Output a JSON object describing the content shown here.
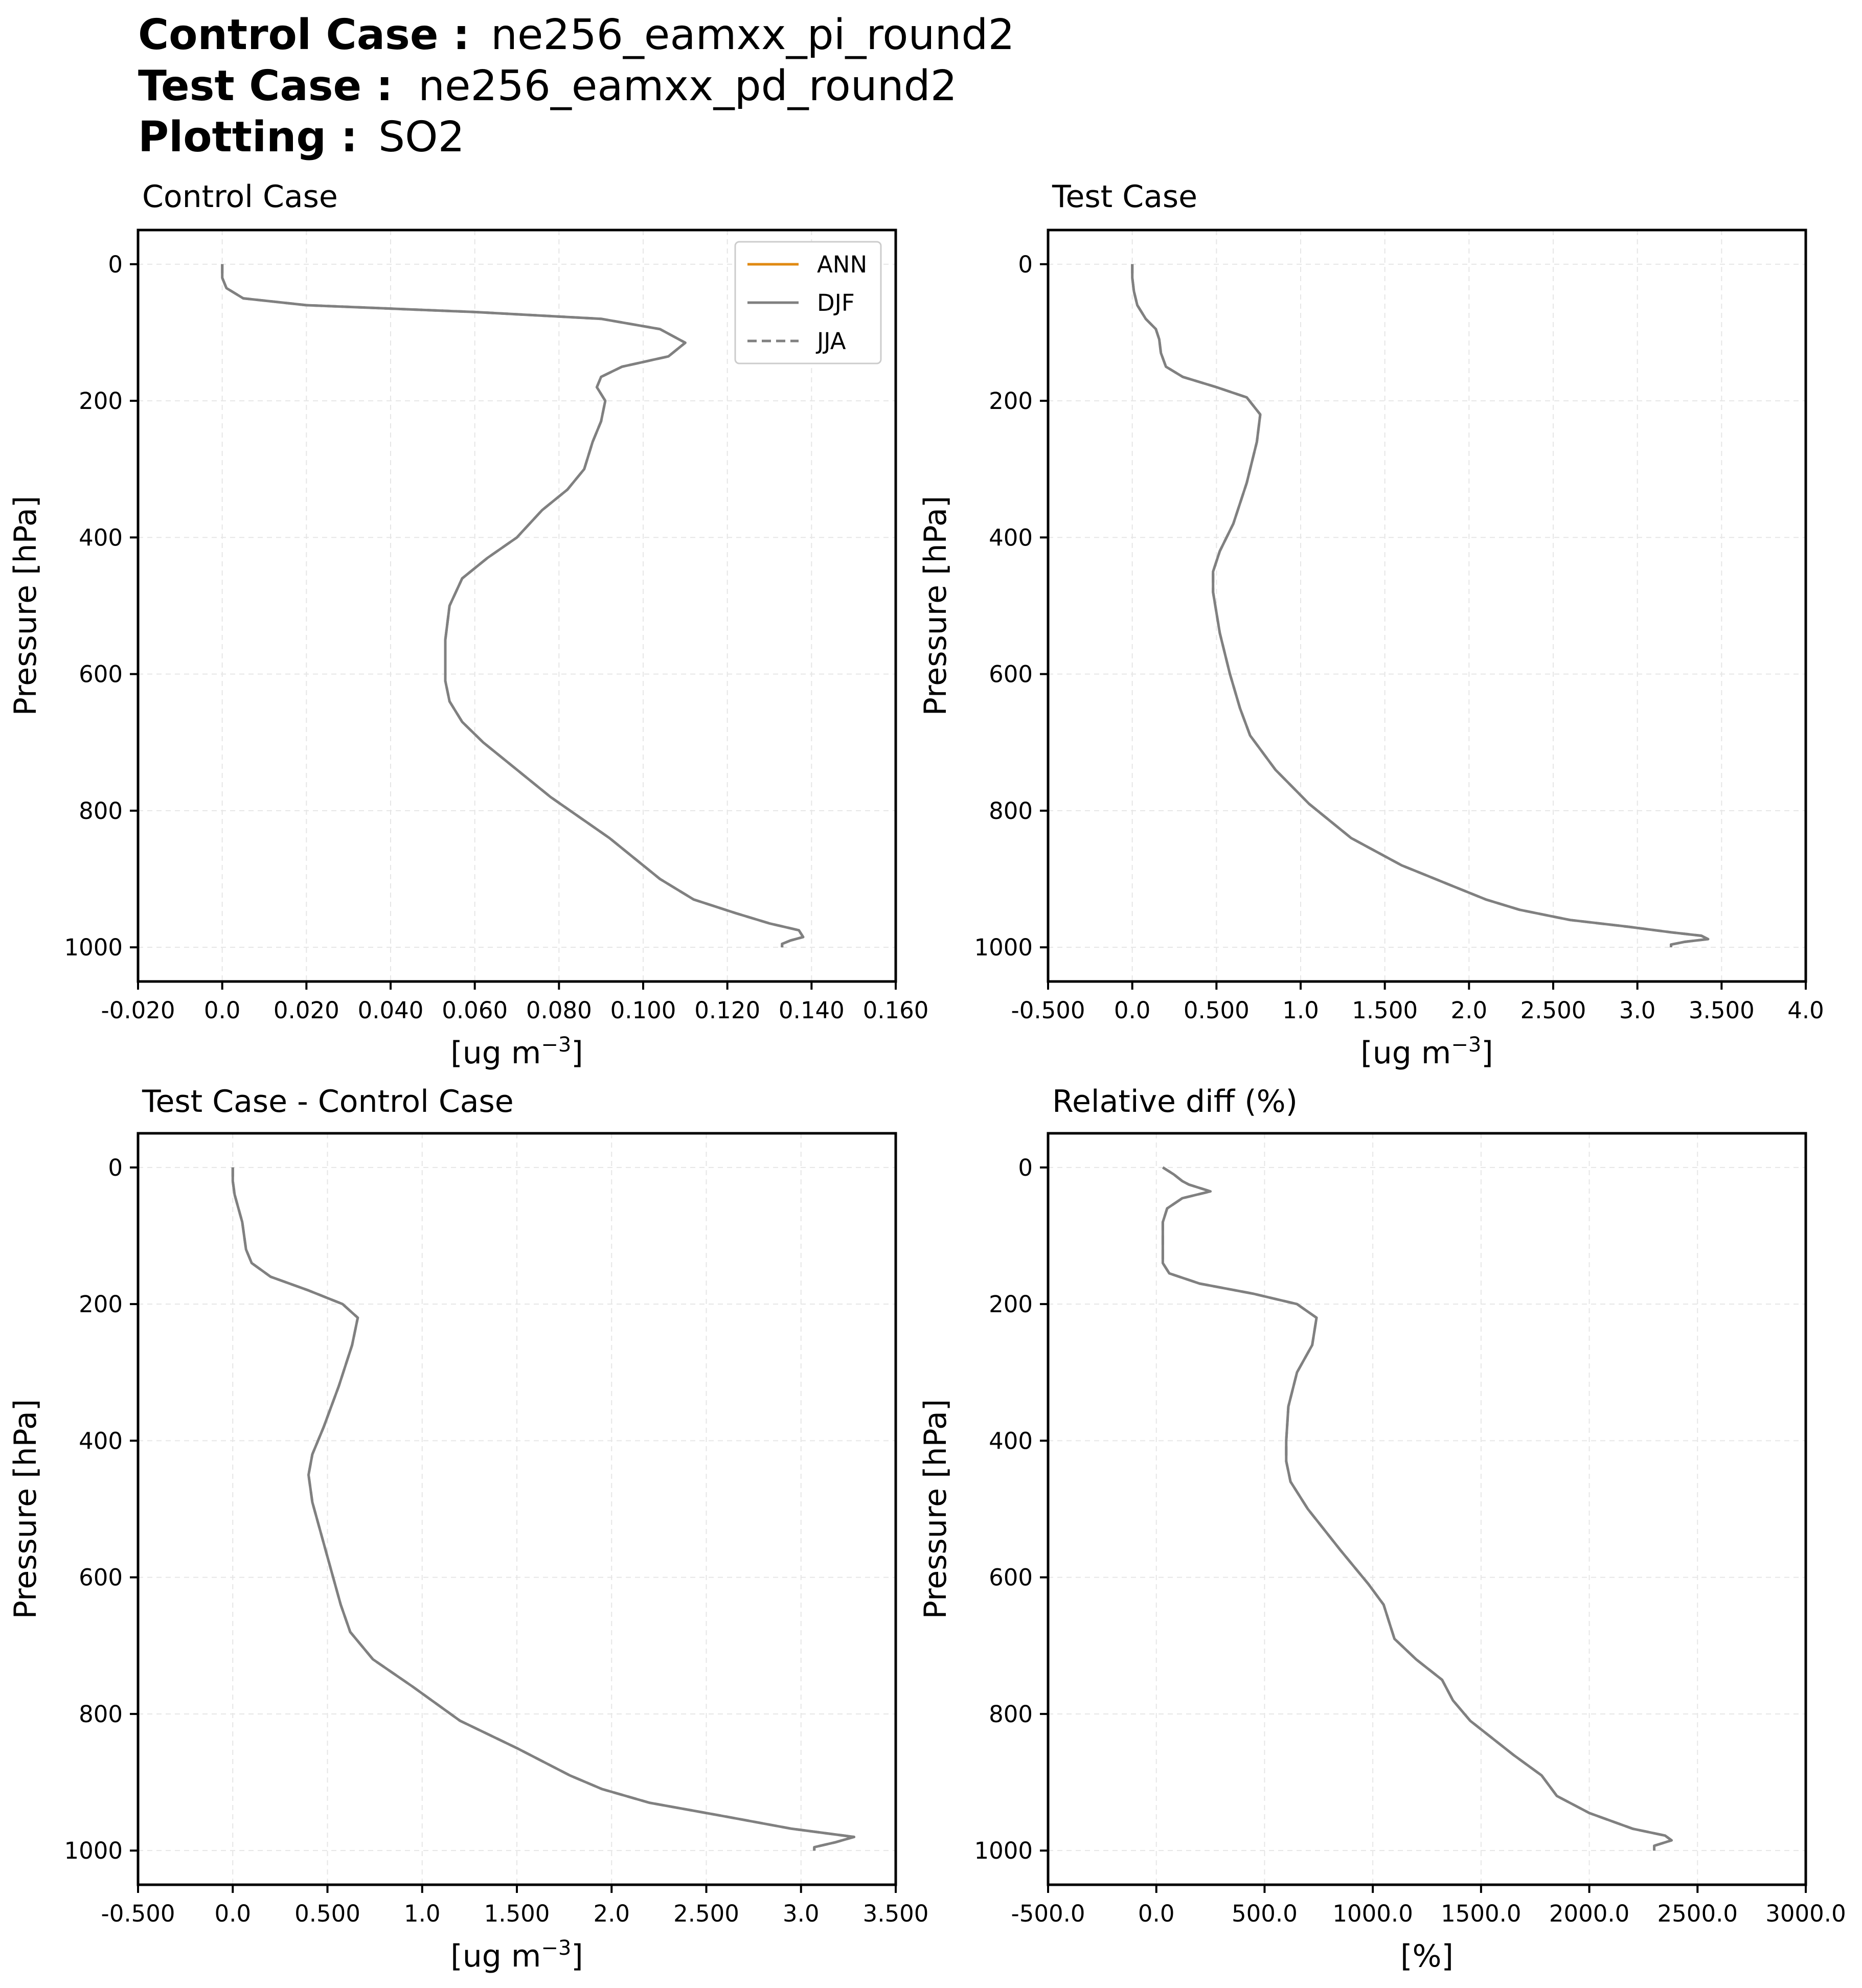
{
  "header": {
    "control_label": "Control Case :",
    "control_value": "ne256_eamxx_pi_round2",
    "test_label": "Test Case :",
    "test_value": "ne256_eamxx_pd_round2",
    "plotting_label": "Plotting :",
    "plotting_value": "SO2"
  },
  "colors": {
    "ann": "#e08a12",
    "djf": "#808080",
    "jja": "#808080",
    "grid": "#e6e6e6"
  },
  "chart_data": [
    {
      "type": "line",
      "title": "Control Case",
      "xlabel": "[ug m⁻³]",
      "ylabel": "Pressure [hPa]",
      "xlim": [
        -0.02,
        0.16
      ],
      "ylim": [
        1050,
        -50
      ],
      "xticks": [
        -0.02,
        0,
        0.02,
        0.04,
        0.06,
        0.08,
        0.1,
        0.12,
        0.14,
        0.16
      ],
      "xtick_labels": [
        "-0.020",
        "0.0",
        "0.020",
        "0.040",
        "0.060",
        "0.080",
        "0.100",
        "0.120",
        "0.140",
        "0.160"
      ],
      "yticks": [
        0,
        200,
        400,
        600,
        800,
        1000
      ],
      "ytick_labels": [
        "0",
        "200",
        "400",
        "600",
        "800",
        "1000"
      ],
      "grid": true,
      "legend": {
        "position": "upper-right",
        "entries": [
          "ANN",
          "DJF",
          "JJA"
        ]
      },
      "series": [
        {
          "name": "DJF",
          "style": "solid",
          "x": [
            0.0,
            0.0,
            0.001,
            0.005,
            0.02,
            0.06,
            0.09,
            0.104,
            0.11,
            0.106,
            0.095,
            0.09,
            0.089,
            0.091,
            0.09,
            0.088,
            0.086,
            0.082,
            0.076,
            0.07,
            0.063,
            0.057,
            0.054,
            0.053,
            0.053,
            0.054,
            0.057,
            0.062,
            0.07,
            0.078,
            0.085,
            0.092,
            0.098,
            0.104,
            0.112,
            0.122,
            0.13,
            0.137,
            0.138,
            0.135,
            0.133,
            0.133
          ],
          "y": [
            0,
            20,
            35,
            50,
            60,
            70,
            80,
            95,
            115,
            135,
            150,
            165,
            180,
            200,
            230,
            260,
            300,
            330,
            360,
            400,
            430,
            460,
            500,
            550,
            610,
            640,
            670,
            700,
            740,
            780,
            810,
            840,
            870,
            900,
            930,
            950,
            965,
            975,
            985,
            990,
            995,
            1000
          ]
        },
        {
          "name": "JJA",
          "style": "dashed",
          "x": [
            0.0,
            0.0,
            0.001,
            0.005,
            0.02,
            0.06,
            0.09,
            0.104,
            0.11,
            0.106,
            0.095,
            0.09,
            0.089,
            0.091,
            0.09,
            0.088,
            0.086,
            0.082,
            0.076,
            0.07,
            0.063,
            0.057,
            0.054,
            0.053,
            0.053,
            0.054,
            0.057,
            0.062,
            0.07,
            0.078,
            0.085,
            0.092,
            0.098,
            0.104,
            0.112,
            0.122,
            0.13,
            0.137,
            0.138,
            0.135,
            0.133,
            0.133
          ],
          "y": [
            0,
            20,
            35,
            50,
            60,
            70,
            80,
            95,
            115,
            135,
            150,
            165,
            180,
            200,
            230,
            260,
            300,
            330,
            360,
            400,
            430,
            460,
            500,
            550,
            610,
            640,
            670,
            700,
            740,
            780,
            810,
            840,
            870,
            900,
            930,
            950,
            965,
            975,
            985,
            990,
            995,
            1000
          ]
        }
      ]
    },
    {
      "type": "line",
      "title": "Test Case",
      "xlabel": "[ug m⁻³]",
      "ylabel": "Pressure [hPa]",
      "xlim": [
        -0.5,
        4.0
      ],
      "ylim": [
        1050,
        -50
      ],
      "xticks": [
        -0.5,
        0,
        0.5,
        1.0,
        1.5,
        2.0,
        2.5,
        3.0,
        3.5,
        4.0
      ],
      "xtick_labels": [
        "-0.500",
        "0.0",
        "0.500",
        "1.0",
        "1.500",
        "2.0",
        "2.500",
        "3.0",
        "3.500",
        "4.0"
      ],
      "yticks": [
        0,
        200,
        400,
        600,
        800,
        1000
      ],
      "ytick_labels": [
        "0",
        "200",
        "400",
        "600",
        "800",
        "1000"
      ],
      "grid": true,
      "series": [
        {
          "name": "DJF",
          "style": "solid",
          "x": [
            0.0,
            0.0,
            0.01,
            0.03,
            0.08,
            0.14,
            0.16,
            0.17,
            0.2,
            0.3,
            0.5,
            0.68,
            0.76,
            0.74,
            0.68,
            0.6,
            0.52,
            0.48,
            0.48,
            0.52,
            0.58,
            0.64,
            0.7,
            0.85,
            1.05,
            1.3,
            1.6,
            1.9,
            2.1,
            2.3,
            2.6,
            2.95,
            3.2,
            3.38,
            3.42,
            3.28,
            3.2,
            3.2
          ],
          "y": [
            0,
            20,
            40,
            60,
            80,
            95,
            110,
            130,
            150,
            165,
            180,
            195,
            220,
            260,
            320,
            380,
            420,
            450,
            480,
            540,
            600,
            650,
            690,
            740,
            790,
            840,
            880,
            910,
            930,
            945,
            960,
            970,
            978,
            983,
            988,
            992,
            996,
            1000
          ]
        },
        {
          "name": "JJA",
          "style": "dashed",
          "x": [
            0.0,
            0.0,
            0.01,
            0.03,
            0.08,
            0.14,
            0.16,
            0.17,
            0.2,
            0.3,
            0.5,
            0.68,
            0.76,
            0.74,
            0.68,
            0.6,
            0.52,
            0.48,
            0.48,
            0.52,
            0.58,
            0.64,
            0.7,
            0.85,
            1.05,
            1.3,
            1.6,
            1.9,
            2.1,
            2.3,
            2.6,
            2.95,
            3.2,
            3.38,
            3.42,
            3.28,
            3.2,
            3.2
          ],
          "y": [
            0,
            20,
            40,
            60,
            80,
            95,
            110,
            130,
            150,
            165,
            180,
            195,
            220,
            260,
            320,
            380,
            420,
            450,
            480,
            540,
            600,
            650,
            690,
            740,
            790,
            840,
            880,
            910,
            930,
            945,
            960,
            970,
            978,
            983,
            988,
            992,
            996,
            1000
          ]
        }
      ]
    },
    {
      "type": "line",
      "title": "Test Case - Control Case",
      "xlabel": "[ug m⁻³]",
      "ylabel": "Pressure [hPa]",
      "xlim": [
        -0.5,
        3.5
      ],
      "ylim": [
        1050,
        -50
      ],
      "xticks": [
        -0.5,
        0,
        0.5,
        1.0,
        1.5,
        2.0,
        2.5,
        3.0,
        3.5
      ],
      "xtick_labels": [
        "-0.500",
        "0.0",
        "0.500",
        "1.0",
        "1.500",
        "2.0",
        "2.500",
        "3.0",
        "3.500"
      ],
      "yticks": [
        0,
        200,
        400,
        600,
        800,
        1000
      ],
      "ytick_labels": [
        "0",
        "200",
        "400",
        "600",
        "800",
        "1000"
      ],
      "grid": true,
      "series": [
        {
          "name": "DJF",
          "style": "solid",
          "x": [
            0.0,
            0.0,
            0.01,
            0.03,
            0.05,
            0.06,
            0.07,
            0.1,
            0.2,
            0.4,
            0.58,
            0.66,
            0.63,
            0.56,
            0.48,
            0.42,
            0.4,
            0.42,
            0.47,
            0.52,
            0.57,
            0.62,
            0.74,
            0.95,
            1.2,
            1.5,
            1.78,
            1.95,
            2.2,
            2.6,
            2.95,
            3.28,
            3.18,
            3.07,
            3.07
          ],
          "y": [
            0,
            20,
            40,
            60,
            80,
            100,
            120,
            140,
            160,
            180,
            200,
            220,
            260,
            320,
            380,
            420,
            450,
            490,
            540,
            590,
            640,
            680,
            720,
            760,
            810,
            850,
            890,
            910,
            930,
            950,
            968,
            980,
            988,
            995,
            1000
          ]
        },
        {
          "name": "JJA",
          "style": "dashed",
          "x": [
            0.0,
            0.0,
            0.01,
            0.03,
            0.05,
            0.06,
            0.07,
            0.1,
            0.2,
            0.4,
            0.58,
            0.66,
            0.63,
            0.56,
            0.48,
            0.42,
            0.4,
            0.42,
            0.47,
            0.52,
            0.57,
            0.62,
            0.74,
            0.95,
            1.2,
            1.5,
            1.78,
            1.95,
            2.2,
            2.6,
            2.95,
            3.28,
            3.18,
            3.07,
            3.07
          ],
          "y": [
            0,
            20,
            40,
            60,
            80,
            100,
            120,
            140,
            160,
            180,
            200,
            220,
            260,
            320,
            380,
            420,
            450,
            490,
            540,
            590,
            640,
            680,
            720,
            760,
            810,
            850,
            890,
            910,
            930,
            950,
            968,
            980,
            988,
            995,
            1000
          ]
        }
      ]
    },
    {
      "type": "line",
      "title": "Relative diff (%)",
      "xlabel": "[%]",
      "ylabel": "Pressure [hPa]",
      "xlim": [
        -500,
        3000
      ],
      "ylim": [
        1050,
        -50
      ],
      "xticks": [
        -500,
        0,
        500,
        1000,
        1500,
        2000,
        2500,
        3000
      ],
      "xtick_labels": [
        "-500.0",
        "0.0",
        "500.0",
        "1000.0",
        "1500.0",
        "2000.0",
        "2500.0",
        "3000.0"
      ],
      "yticks": [
        0,
        200,
        400,
        600,
        800,
        1000
      ],
      "ytick_labels": [
        "0",
        "200",
        "400",
        "600",
        "800",
        "1000"
      ],
      "grid": true,
      "series": [
        {
          "name": "DJF",
          "style": "solid",
          "x": [
            30,
            80,
            120,
            150,
            250,
            120,
            50,
            30,
            30,
            30,
            30,
            60,
            200,
            450,
            650,
            740,
            720,
            650,
            610,
            600,
            600,
            620,
            700,
            850,
            980,
            1050,
            1080,
            1100,
            1200,
            1320,
            1370,
            1450,
            1650,
            1780,
            1850,
            2000,
            2200,
            2350,
            2380,
            2300,
            2300
          ],
          "y": [
            0,
            10,
            20,
            25,
            35,
            45,
            60,
            80,
            100,
            120,
            140,
            155,
            170,
            185,
            200,
            220,
            260,
            300,
            350,
            400,
            430,
            460,
            500,
            560,
            610,
            640,
            670,
            690,
            720,
            750,
            780,
            810,
            860,
            890,
            920,
            945,
            968,
            978,
            985,
            993,
            1000
          ]
        },
        {
          "name": "JJA",
          "style": "dashed",
          "x": [
            30,
            80,
            120,
            150,
            250,
            120,
            50,
            30,
            30,
            30,
            30,
            60,
            200,
            450,
            650,
            740,
            720,
            650,
            610,
            600,
            600,
            620,
            700,
            850,
            980,
            1050,
            1080,
            1100,
            1200,
            1320,
            1370,
            1450,
            1650,
            1780,
            1850,
            2000,
            2200,
            2350,
            2380,
            2300,
            2300
          ],
          "y": [
            0,
            10,
            20,
            25,
            35,
            45,
            60,
            80,
            100,
            120,
            140,
            155,
            170,
            185,
            200,
            220,
            260,
            300,
            350,
            400,
            430,
            460,
            500,
            560,
            610,
            640,
            670,
            690,
            720,
            750,
            780,
            810,
            860,
            890,
            920,
            945,
            968,
            978,
            985,
            993,
            1000
          ]
        }
      ]
    }
  ]
}
